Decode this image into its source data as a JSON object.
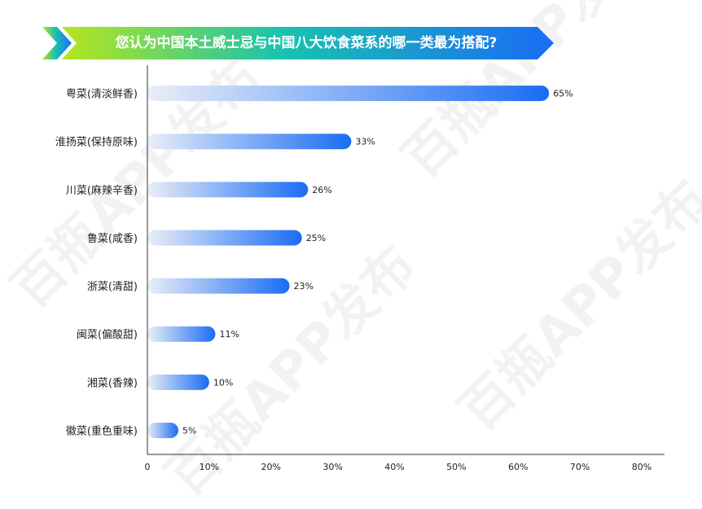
{
  "header": {
    "top_text": "",
    "title": "您认为中国本土威士忌与中国八大饮食菜系的哪一类最为搭配?"
  },
  "watermark": "百瓶APP发布",
  "colors": {
    "banner_start": "#b5e61d",
    "banner_mid": "#19c2b0",
    "banner_end": "#1a6cf5",
    "bar_start": "#e9eef6",
    "bar_end": "#1a6cf5",
    "axis": "#333333"
  },
  "chart_data": {
    "type": "bar",
    "orientation": "horizontal",
    "categories": [
      "粤菜(清淡鲜香)",
      "淮扬菜(保持原味)",
      "川菜(麻辣辛香)",
      "鲁菜(咸香)",
      "浙菜(清甜)",
      "闽菜(偏酸甜)",
      "湘菜(香辣)",
      "徽菜(重色重味)"
    ],
    "values": [
      65,
      33,
      26,
      25,
      23,
      11,
      10,
      5
    ],
    "data_labels": [
      "65%",
      "33%",
      "26%",
      "25%",
      "23%",
      "11%",
      "10%",
      "5%"
    ],
    "xlim": [
      0,
      80
    ],
    "x_ticks": [
      "0",
      "10%",
      "20%",
      "30%",
      "40%",
      "50%",
      "60%",
      "70%",
      "80%"
    ],
    "title": "您认为中国本土威士忌与中国八大饮食菜系的哪一类最为搭配?",
    "xlabel": "",
    "ylabel": "",
    "grid": false
  }
}
